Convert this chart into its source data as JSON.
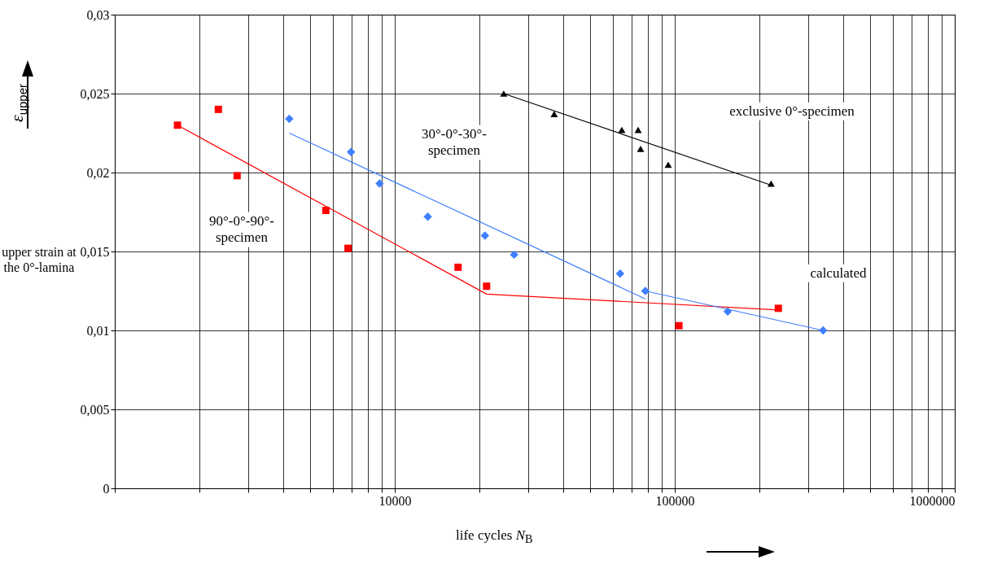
{
  "chart_data": {
    "type": "scatter",
    "xlabel": "life cycles N$_{B}$",
    "ylabel": "upper strain at the 0°-lamina",
    "log": "x",
    "grid": true,
    "xlim": [
      1000,
      1000000
    ],
    "ylim": [
      0,
      0.03
    ],
    "xticks": [
      {
        "value": 1000,
        "label": null
      },
      {
        "value": 2000,
        "label": null
      },
      {
        "value": 3000,
        "label": null
      },
      {
        "value": 4000,
        "label": null
      },
      {
        "value": 5000,
        "label": null
      },
      {
        "value": 6000,
        "label": null
      },
      {
        "value": 7000,
        "label": null
      },
      {
        "value": 8000,
        "label": null
      },
      {
        "value": 9000,
        "label": null
      },
      10000,
      {
        "value": 20000,
        "label": null
      },
      {
        "value": 30000,
        "label": null
      },
      {
        "value": 40000,
        "label": null
      },
      {
        "value": 50000,
        "label": null
      },
      {
        "value": 60000,
        "label": null
      },
      {
        "value": 70000,
        "label": null
      },
      {
        "value": 80000,
        "label": null
      },
      {
        "value": 90000,
        "label": null
      },
      100000,
      {
        "value": 200000,
        "label": null
      },
      {
        "value": 300000,
        "label": null
      },
      {
        "value": 400000,
        "label": null
      },
      {
        "value": 500000,
        "label": null
      },
      {
        "value": 600000,
        "label": null
      },
      {
        "value": 700000,
        "label": null
      },
      {
        "value": 800000,
        "label": null
      },
      {
        "value": 900000,
        "label": null
      },
      1000000
    ],
    "yticks": [
      {
        "value": 0,
        "label": "0"
      },
      {
        "value": 0.005,
        "label": "0,005"
      },
      {
        "value": 0.01,
        "label": "0,01"
      },
      {
        "value": 0.015,
        "label": "0,015"
      },
      {
        "value": 0.02,
        "label": "0,02"
      },
      {
        "value": 0.025,
        "label": "0,025"
      },
      {
        "value": 0.03,
        "label": "0,03"
      }
    ],
    "series": [
      {
        "type": "scatter",
        "marker": "square",
        "color": "#ff0000",
        "x": [
          1675,
          2344,
          2735,
          5675,
          6810,
          16830,
          21280,
          103500,
          234400
        ],
        "values": [
          0.023,
          0.024,
          0.0198,
          0.0176,
          0.0152,
          0.014,
          0.0128,
          0.0103,
          0.0114
        ]
      },
      {
        "type": "scatter",
        "marker": "diamond",
        "color": "#3f7fff",
        "x": [
          4200,
          6980,
          8830,
          13120,
          21000,
          26690,
          63800,
          78500,
          154500,
          338800
        ],
        "values": [
          0.0234,
          0.0213,
          0.0193,
          0.0172,
          0.016,
          0.0148,
          0.0136,
          0.0125,
          0.0112,
          0.01
        ]
      },
      {
        "type": "scatter",
        "marker": "triangle",
        "color": "#000000",
        "x": [
          24500,
          37100,
          64700,
          74000,
          75500,
          94800,
          220900
        ],
        "values": [
          0.025,
          0.0237,
          0.0227,
          0.0227,
          0.0215,
          0.0205,
          0.0193
        ]
      },
      {
        "type": "line",
        "color": "#ff0000",
        "x": [
          1675,
          21280,
          234400
        ],
        "values": [
          0.023,
          0.0123,
          0.0113
        ]
      },
      {
        "type": "line",
        "color": "#3f7fff",
        "x": [
          4200,
          78500
        ],
        "values": [
          0.0225,
          0.012
        ]
      },
      {
        "type": "line",
        "color": "#3f7fff",
        "x": [
          78500,
          338800
        ],
        "values": [
          0.0125,
          0.01
        ]
      },
      {
        "type": "line",
        "color": "#000000",
        "x": [
          24500,
          220900
        ],
        "values": [
          0.025,
          0.0192
        ]
      }
    ],
    "annotations": [
      "exclusive 0°-specimen",
      "30°-0°-30°-\nspecimen",
      "90°-0°-90°-\nspecimen",
      "calculated",
      "ε$_{upper}$"
    ]
  }
}
